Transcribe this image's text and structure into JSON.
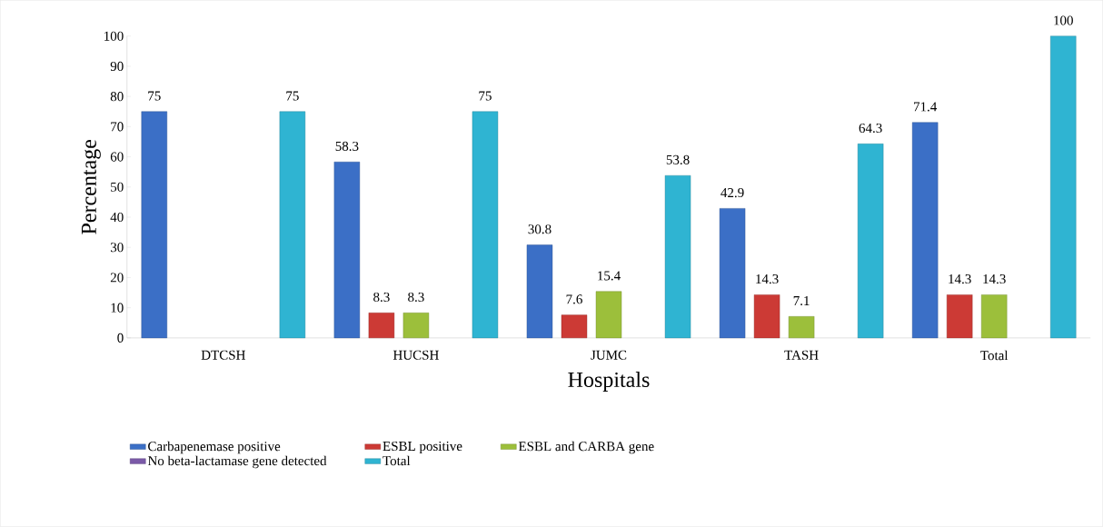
{
  "chart_data": {
    "type": "bar",
    "xlabel": "Hospitals",
    "ylabel": "Percentage",
    "categories": [
      "DTCSH",
      "HUCSH",
      "JUMC",
      "TASH",
      "Total"
    ],
    "series": [
      {
        "name": "Carbapenemase positive",
        "color": "#3b6fc6",
        "values": [
          75,
          58.3,
          30.8,
          42.9,
          71.4
        ]
      },
      {
        "name": "ESBL positive",
        "color": "#cc3a35",
        "values": [
          null,
          8.3,
          7.6,
          14.3,
          14.3
        ]
      },
      {
        "name": "ESBL and CARBA gene",
        "color": "#9cbf3b",
        "values": [
          null,
          8.3,
          15.4,
          7.1,
          14.3
        ]
      },
      {
        "name": "No beta-lactamase gene detected",
        "color": "#7b5aa8",
        "values": [
          null,
          null,
          null,
          null,
          null
        ]
      },
      {
        "name": "Total",
        "color": "#2fb4d2",
        "values": [
          75,
          75,
          53.8,
          64.3,
          100
        ]
      }
    ],
    "ylim": [
      0,
      100
    ],
    "yticks": [
      0,
      10,
      20,
      30,
      40,
      50,
      60,
      70,
      80,
      90,
      100
    ],
    "data_labels": true,
    "legend": "bottom",
    "grid": false
  }
}
